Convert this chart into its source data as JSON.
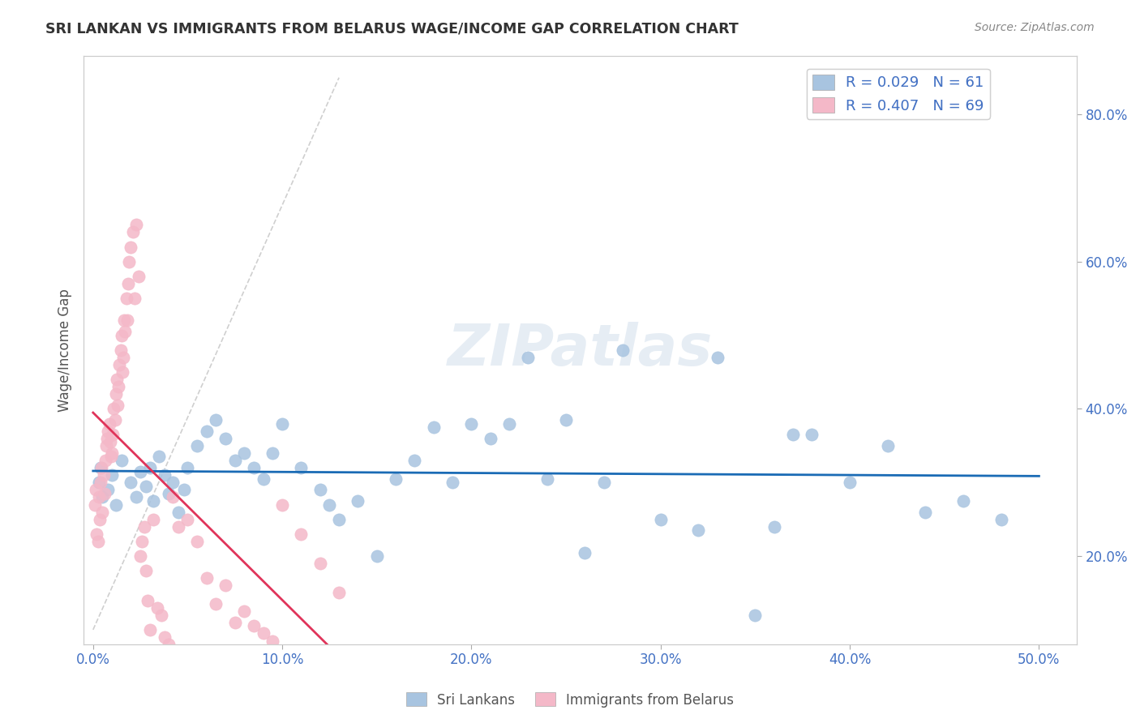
{
  "title": "SRI LANKAN VS IMMIGRANTS FROM BELARUS WAGE/INCOME GAP CORRELATION CHART",
  "source": "Source: ZipAtlas.com",
  "xlim": [
    -0.5,
    52
  ],
  "ylim": [
    8,
    88
  ],
  "ylabel": "Wage/Income Gap",
  "series1_label": "Sri Lankans",
  "series1_R": 0.029,
  "series1_N": 61,
  "series1_color": "#a8c4e0",
  "series1_line_color": "#1a6bb5",
  "series2_label": "Immigrants from Belarus",
  "series2_R": 0.407,
  "series2_N": 69,
  "series2_color": "#f4b8c8",
  "series2_line_color": "#e0345a",
  "background_color": "#ffffff",
  "grid_color": "#dddddd",
  "title_color": "#333333",
  "axis_label_color": "#4472c4",
  "watermark": "ZIPatlas",
  "sri_lankans_x": [
    0.3,
    0.5,
    0.4,
    0.8,
    1.0,
    1.2,
    1.5,
    2.0,
    2.3,
    2.5,
    2.8,
    3.0,
    3.2,
    3.5,
    3.8,
    4.0,
    4.2,
    4.5,
    4.8,
    5.0,
    5.5,
    6.0,
    6.5,
    7.0,
    7.5,
    8.0,
    8.5,
    9.0,
    9.5,
    10.0,
    11.0,
    12.0,
    12.5,
    13.0,
    14.0,
    15.0,
    16.0,
    17.0,
    18.0,
    19.0,
    20.0,
    21.0,
    22.0,
    23.0,
    24.0,
    25.0,
    26.0,
    27.0,
    28.0,
    30.0,
    32.0,
    33.0,
    35.0,
    36.0,
    37.0,
    38.0,
    40.0,
    42.0,
    44.0,
    46.0,
    48.0
  ],
  "sri_lankans_y": [
    30.0,
    28.0,
    32.0,
    29.0,
    31.0,
    27.0,
    33.0,
    30.0,
    28.0,
    31.5,
    29.5,
    32.0,
    27.5,
    33.5,
    31.0,
    28.5,
    30.0,
    26.0,
    29.0,
    32.0,
    35.0,
    37.0,
    38.5,
    36.0,
    33.0,
    34.0,
    32.0,
    30.5,
    34.0,
    38.0,
    32.0,
    29.0,
    27.0,
    25.0,
    27.5,
    20.0,
    30.5,
    33.0,
    37.5,
    30.0,
    38.0,
    36.0,
    38.0,
    47.0,
    30.5,
    38.5,
    20.5,
    30.0,
    48.0,
    25.0,
    23.5,
    47.0,
    12.0,
    24.0,
    36.5,
    36.5,
    30.0,
    35.0,
    26.0,
    27.5,
    25.0
  ],
  "belarus_x": [
    0.1,
    0.15,
    0.2,
    0.25,
    0.3,
    0.35,
    0.4,
    0.45,
    0.5,
    0.55,
    0.6,
    0.65,
    0.7,
    0.75,
    0.8,
    0.85,
    0.9,
    0.95,
    1.0,
    1.05,
    1.1,
    1.15,
    1.2,
    1.25,
    1.3,
    1.35,
    1.4,
    1.45,
    1.5,
    1.55,
    1.6,
    1.65,
    1.7,
    1.75,
    1.8,
    1.85,
    1.9,
    2.0,
    2.1,
    2.2,
    2.3,
    2.4,
    2.5,
    2.6,
    2.7,
    2.8,
    2.9,
    3.0,
    3.2,
    3.4,
    3.6,
    3.8,
    4.0,
    4.2,
    4.5,
    5.0,
    5.5,
    6.0,
    6.5,
    7.0,
    7.5,
    8.0,
    8.5,
    9.0,
    9.5,
    10.0,
    11.0,
    12.0,
    13.0
  ],
  "belarus_y": [
    27.0,
    29.0,
    23.0,
    22.0,
    28.0,
    25.0,
    30.0,
    32.0,
    26.0,
    31.0,
    28.5,
    33.0,
    35.0,
    36.0,
    37.0,
    38.0,
    35.5,
    33.5,
    34.0,
    36.5,
    40.0,
    38.5,
    42.0,
    44.0,
    40.5,
    43.0,
    46.0,
    48.0,
    50.0,
    45.0,
    47.0,
    52.0,
    50.5,
    55.0,
    52.0,
    57.0,
    60.0,
    62.0,
    64.0,
    55.0,
    65.0,
    58.0,
    20.0,
    22.0,
    24.0,
    18.0,
    14.0,
    10.0,
    25.0,
    13.0,
    12.0,
    9.0,
    8.0,
    28.0,
    24.0,
    25.0,
    22.0,
    17.0,
    13.5,
    16.0,
    11.0,
    12.5,
    10.5,
    9.5,
    8.5,
    27.0,
    23.0,
    19.0,
    15.0
  ]
}
